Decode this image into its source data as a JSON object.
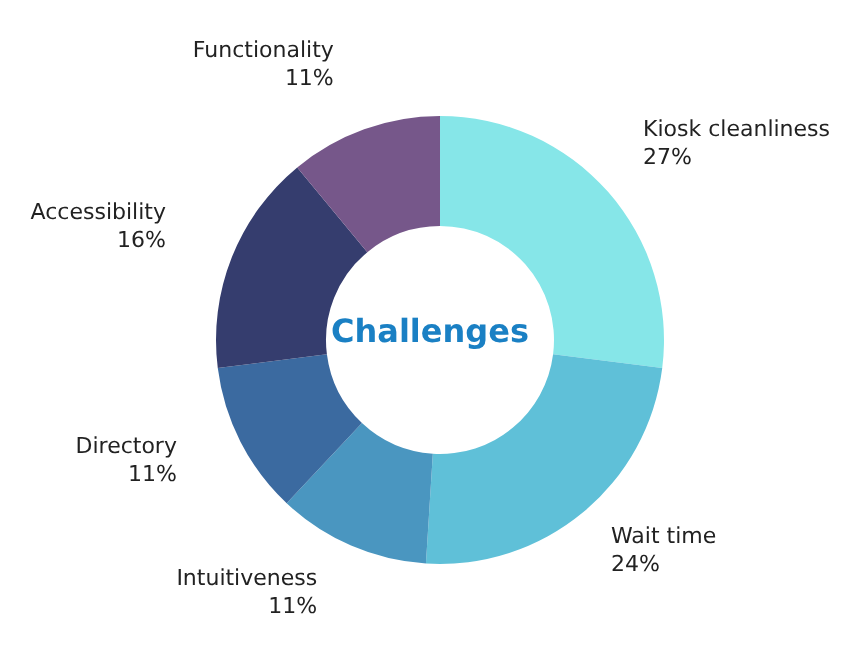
{
  "chart_data": {
    "type": "donut",
    "title": "Challenges",
    "categories": [
      "Kiosk cleanliness",
      "Wait time",
      "Intuitiveness",
      "Directory",
      "Accessibility",
      "Functionality"
    ],
    "values": [
      27,
      24,
      11,
      11,
      16,
      11
    ],
    "value_labels": [
      "27%",
      "24%",
      "11%",
      "11%",
      "16%",
      "11%"
    ],
    "colors": [
      "#86e6e8",
      "#5fc0d8",
      "#4a96c0",
      "#3b6aa0",
      "#353d6e",
      "#76578a"
    ],
    "legend": false
  }
}
